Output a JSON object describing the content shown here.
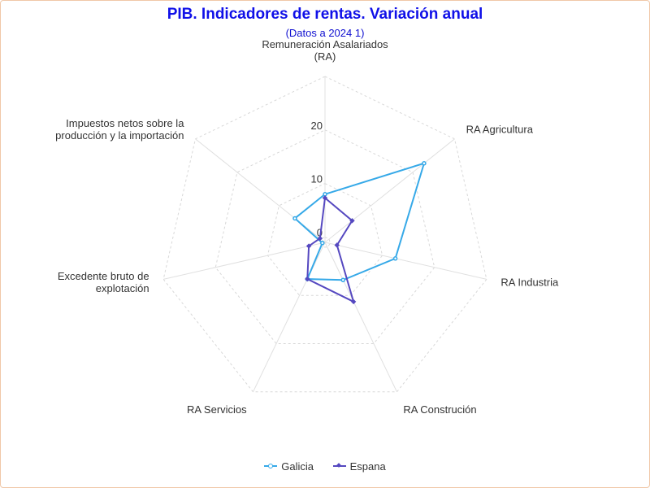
{
  "chart_data": {
    "type": "radar",
    "title": "PIB. Indicadores de rentas. Variación anual",
    "subtitle": "(Datos a 2024 1)",
    "categories": [
      "Remuneración Asalariados (RA)",
      "RA Agricultura",
      "RA Industria",
      "RA Construción",
      "RA Servicios",
      "Excedente bruto de explotación",
      "Impuestos netos sobre la producción y la importación"
    ],
    "category_lines": [
      [
        "Remuneración Asalariados",
        "(RA)"
      ],
      [
        "RA Agricultura"
      ],
      [
        "RA Industria"
      ],
      [
        "RA Construción"
      ],
      [
        "RA Servicios"
      ],
      [
        "Excedente bruto de",
        "explotación"
      ],
      [
        "Impuestos netos sobre la",
        "producción y la importación"
      ]
    ],
    "radial_ticks": [
      "0",
      "10",
      "20"
    ],
    "rmin": -1,
    "rmax": 30,
    "series": [
      {
        "name": "Galicia",
        "values": [
          8,
          22.7,
          12.5,
          6.8,
          6.6,
          -0.5,
          6.2
        ],
        "color": "#36a9e8",
        "marker": "circle"
      },
      {
        "name": "Espana",
        "values": [
          7.3,
          5.5,
          1.3,
          11.3,
          6.6,
          2.1,
          0.2
        ],
        "color": "#5548c0",
        "marker": "diamond"
      }
    ],
    "legend_position": "bottom",
    "grid": true
  }
}
